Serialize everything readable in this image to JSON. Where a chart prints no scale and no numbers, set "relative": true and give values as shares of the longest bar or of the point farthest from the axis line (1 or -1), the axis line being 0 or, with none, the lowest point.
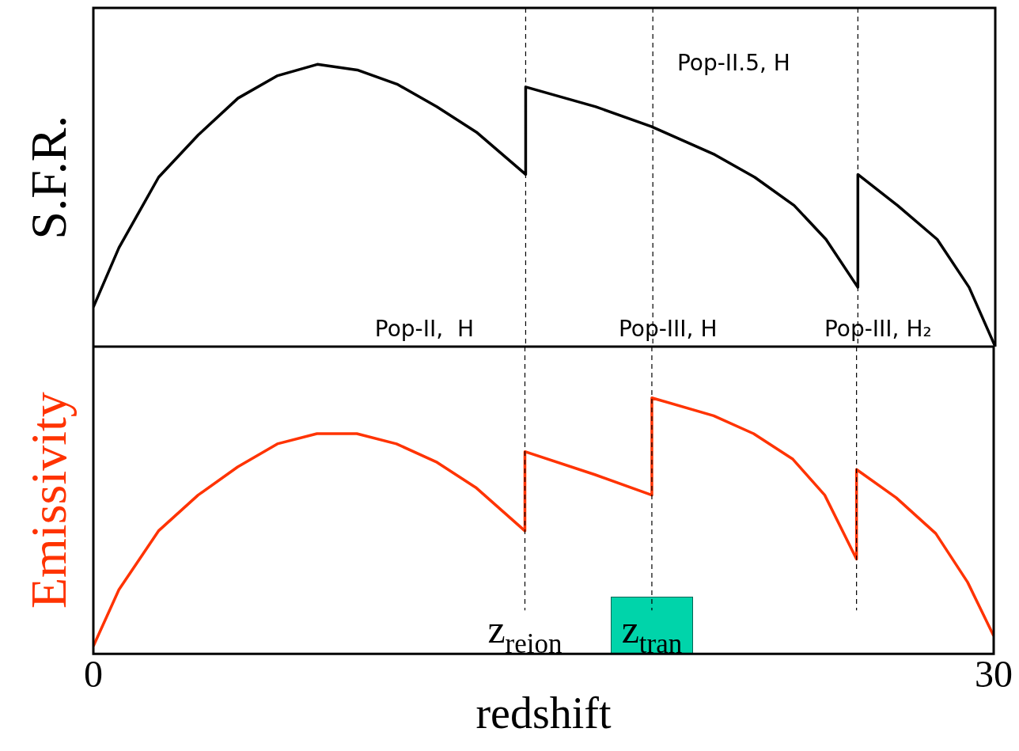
{
  "chart_data": [
    {
      "type": "line",
      "ylabel": "S.F.R.",
      "relative": true,
      "xlim": [
        0,
        30
      ],
      "tick_labels": false,
      "line_style": "solid",
      "series": [
        {
          "color": "#000000",
          "x": [
            0,
            0.85,
            2.17,
            3.49,
            4.81,
            6.13,
            7.45,
            8.78,
            10.1,
            11.42,
            12.74,
            14.38,
            14.38,
            16.71,
            18.56,
            20.67,
            22.0,
            23.31,
            24.37,
            25.43,
            25.43,
            26.75,
            28.07,
            29.13,
            30
          ],
          "values": [
            0.14,
            0.35,
            0.6,
            0.75,
            0.88,
            0.96,
            1.0,
            0.98,
            0.93,
            0.85,
            0.76,
            0.61,
            0.92,
            0.85,
            0.78,
            0.68,
            0.6,
            0.5,
            0.38,
            0.21,
            0.61,
            0.5,
            0.38,
            0.21,
            0
          ]
        }
      ],
      "ref_lines": [
        {
          "axis": "x",
          "value": 14.38,
          "line_style": "dashed"
        },
        {
          "axis": "x",
          "value": 18.61,
          "line_style": "dashed"
        },
        {
          "axis": "x",
          "value": 25.43,
          "line_style": "dashed"
        }
      ],
      "annotations": [
        "Pop-II.5, H",
        "Pop-II,  H",
        "Pop-III, H",
        "Pop-III, H₂"
      ]
    },
    {
      "type": "line",
      "ylabel": "Emissivity",
      "xlabel": "redshift",
      "relative": true,
      "xlim": [
        0,
        30
      ],
      "xticks": [
        0,
        30
      ],
      "tick_labels": "x",
      "line_style": "solid",
      "series": [
        {
          "color": "#ff3300",
          "x": [
            0,
            0.85,
            2.17,
            3.49,
            4.81,
            6.13,
            7.45,
            8.78,
            10.1,
            11.42,
            12.74,
            14.38,
            14.38,
            16.71,
            18.61,
            18.61,
            20.67,
            22.0,
            23.31,
            24.37,
            25.43,
            25.43,
            26.75,
            28.07,
            29.13,
            30
          ],
          "values": [
            0.03,
            0.25,
            0.48,
            0.62,
            0.73,
            0.82,
            0.86,
            0.86,
            0.82,
            0.75,
            0.65,
            0.48,
            0.79,
            0.7,
            0.62,
            1.0,
            0.93,
            0.86,
            0.76,
            0.62,
            0.37,
            0.72,
            0.61,
            0.47,
            0.28,
            0.07
          ]
        }
      ],
      "ref_lines": [
        {
          "axis": "x",
          "value": 14.38,
          "label": "z$_{reion}$",
          "line_style": "dashed"
        },
        {
          "axis": "x",
          "value": 18.61,
          "label": "z$_{tran}$",
          "line_style": "dashed"
        },
        {
          "axis": "x",
          "value": 25.43,
          "line_style": "dashed"
        }
      ]
    }
  ]
}
